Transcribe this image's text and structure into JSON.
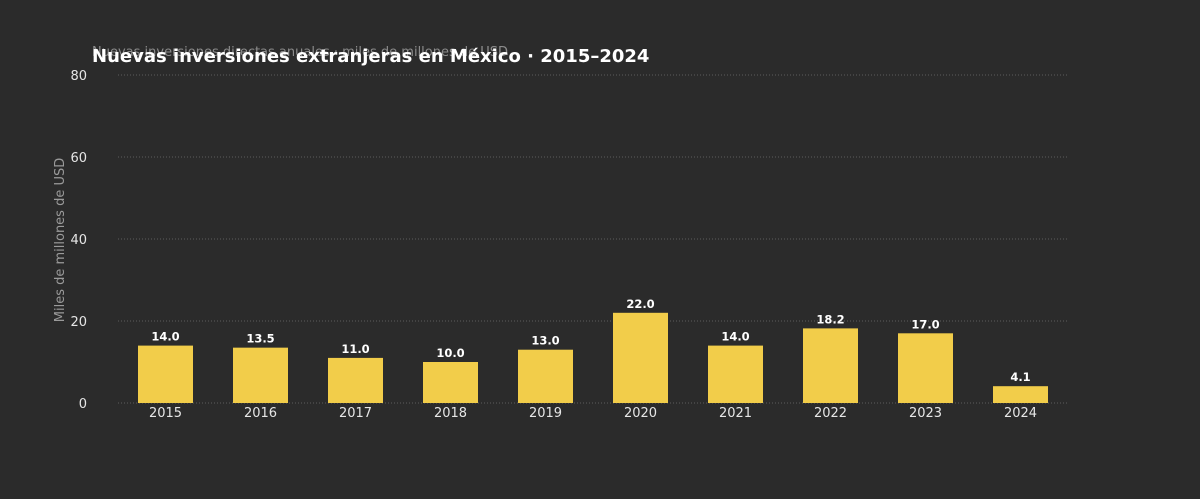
{
  "chart_data": {
    "type": "bar",
    "title": "Nuevas inversiones extranjeras en México · 2015–2024",
    "subtitle": "Nuevas inversiones directas anuales · miles de millones de USD",
    "xlabel": "",
    "ylabel": "Miles de millones de USD",
    "categories": [
      "2015",
      "2016",
      "2017",
      "2018",
      "2019",
      "2020",
      "2021",
      "2022",
      "2023",
      "2024"
    ],
    "values": [
      14.0,
      13.5,
      11.0,
      10.0,
      13.0,
      22.0,
      14.0,
      18.2,
      17.0,
      4.1
    ],
    "value_labels": [
      "14.0",
      "13.5",
      "11.0",
      "10.0",
      "13.0",
      "22.0",
      "14.0",
      "18.2",
      "17.0",
      "4.1"
    ],
    "ylim": [
      0,
      80
    ],
    "yticks": [
      0,
      20,
      40,
      60,
      80
    ],
    "ytick_labels": [
      "0",
      "20",
      "40",
      "60",
      "80"
    ],
    "grid": true,
    "legend": "none",
    "colors": {
      "background": "#2b2b2b",
      "bar": "#f2cd4a",
      "grid": "#5e5e5e"
    }
  }
}
